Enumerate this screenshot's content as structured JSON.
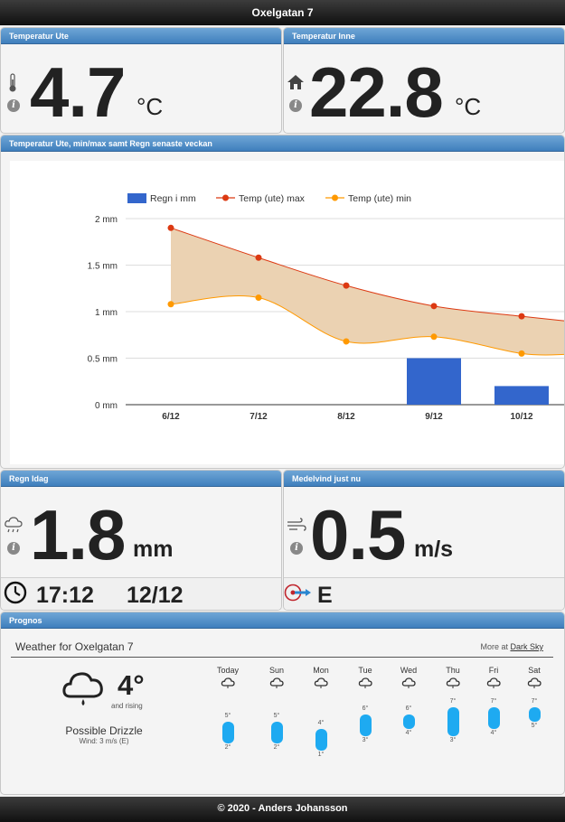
{
  "header": {
    "title": "Oxelgatan 7"
  },
  "panels": {
    "temp_ute": {
      "title": "Temperatur Ute",
      "value": "4.7",
      "unit": "°C"
    },
    "temp_inne": {
      "title": "Temperatur Inne",
      "value": "22.8",
      "unit": "°C"
    },
    "chart": {
      "title": "Temperatur Ute, min/max samt Regn senaste veckan"
    },
    "regn": {
      "title": "Regn Idag",
      "value": "1.8",
      "unit": "mm",
      "time": "17:12",
      "date": "12/12"
    },
    "vind": {
      "title": "Medelvind just nu",
      "value": "0.5",
      "unit": "m/s",
      "direction": "E"
    },
    "prognos": {
      "title": "Prognos"
    }
  },
  "chart_data": {
    "type": "bar",
    "categories": [
      "6/12",
      "7/12",
      "8/12",
      "9/12",
      "10/12"
    ],
    "series": [
      {
        "name": "Regn i mm",
        "type": "bar",
        "color": "#3366cc",
        "values": [
          0,
          0,
          0,
          0.5,
          0.2
        ]
      },
      {
        "name": "Temp (ute) max",
        "type": "line",
        "color": "#dc3912",
        "values": [
          1.9,
          1.58,
          1.28,
          1.06,
          0.95
        ]
      },
      {
        "name": "Temp (ute) min",
        "type": "line",
        "color": "#ff9900",
        "values": [
          1.08,
          1.15,
          0.68,
          0.73,
          0.55
        ]
      }
    ],
    "y_ticks": [
      "0 mm",
      "0.5 mm",
      "1 mm",
      "1.5 mm",
      "2 mm"
    ],
    "ylim": [
      0,
      2
    ],
    "legend": "top-left",
    "grid": true
  },
  "forecast": {
    "header": "Weather for Oxelgatan 7",
    "more_prefix": "More at",
    "more_link": "Dark Sky",
    "current_temp": "4°",
    "trend": "and rising",
    "summary": "Possible Drizzle",
    "wind": "Wind: 3 m/s (E)",
    "days": [
      {
        "name": "Today",
        "high": "5°",
        "low": "2°",
        "hi": 5,
        "lo": 2
      },
      {
        "name": "Sun",
        "high": "5°",
        "low": "2°",
        "hi": 5,
        "lo": 2
      },
      {
        "name": "Mon",
        "high": "4°",
        "low": "1°",
        "hi": 4,
        "lo": 1
      },
      {
        "name": "Tue",
        "high": "6°",
        "low": "3°",
        "hi": 6,
        "lo": 3
      },
      {
        "name": "Wed",
        "high": "6°",
        "low": "4°",
        "hi": 6,
        "lo": 4
      },
      {
        "name": "Thu",
        "high": "7°",
        "low": "3°",
        "hi": 7,
        "lo": 3
      },
      {
        "name": "Fri",
        "high": "7°",
        "low": "4°",
        "hi": 7,
        "lo": 4
      },
      {
        "name": "Sat",
        "high": "7°",
        "low": "5°",
        "hi": 7,
        "lo": 5
      }
    ]
  },
  "footer": {
    "text": "© 2020 - Anders Johansson"
  }
}
